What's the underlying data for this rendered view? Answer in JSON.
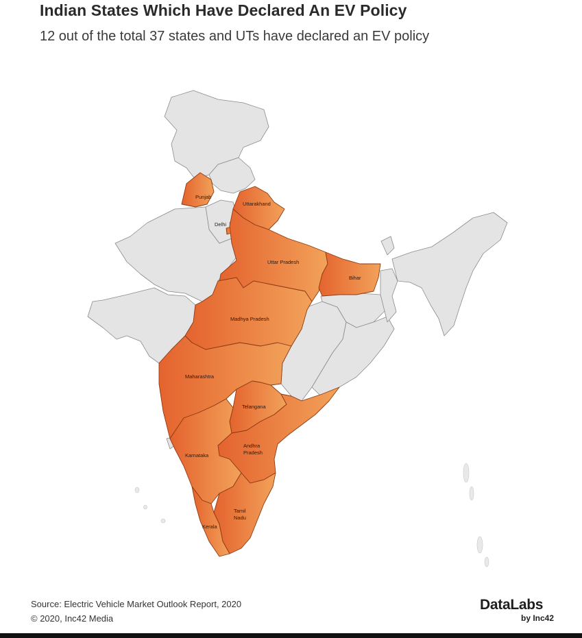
{
  "header": {
    "title": "Indian States Which Have Declared An EV Policy",
    "subtitle": "12 out of the total 37 states and UTs have declared an EV policy"
  },
  "map": {
    "highlight_color": "#e8763a",
    "highlight_color_light": "#f2a25a",
    "base_color": "#e4e4e4",
    "border_color": "#8a8a8a",
    "labels": {
      "punjab": "Punjab",
      "uttarakhand": "Uttarakhand",
      "delhi": "Delhi",
      "uttar_pradesh": "Uttar Pradesh",
      "bihar": "Bihar",
      "madhya_pradesh": "Madhya Pradesh",
      "maharashtra": "Maharashtra",
      "telangana": "Telangana",
      "andhra_pradesh_line1": "Andhra",
      "andhra_pradesh_line2": "Pradesh",
      "karnataka": "Karnataka",
      "tamil_nadu_line1": "Tamil",
      "tamil_nadu_line2": "Nadu",
      "kerala": "Kerala"
    }
  },
  "footer": {
    "source": "Source: Electric Vehicle Market Outlook Report, 2020",
    "copyright": "© 2020, Inc42 Media",
    "logo_main": "DataLabs",
    "logo_sub": "by Inc42"
  }
}
